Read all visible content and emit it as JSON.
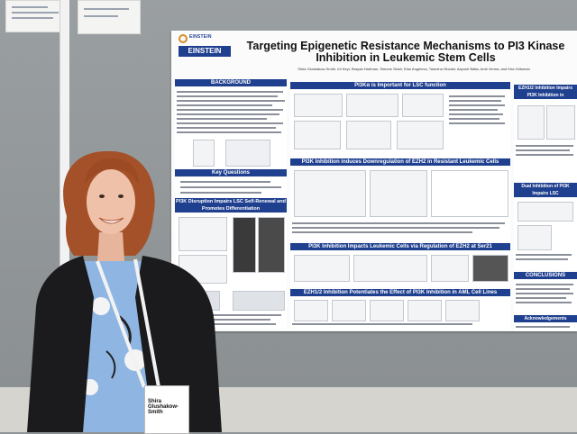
{
  "poster": {
    "logo": {
      "line1": "EINSTEIN",
      "line2": "EINSTEIN"
    },
    "title_line1": "Targeting Epigenetic Resistance Mechanisms to PI3 Kinase",
    "title_line2": "Inhibition in Leukemic Stem Cells",
    "authors": "Shira Glushakow-Smith, Irit Keyt, Brayda Hartman, Simone Sidoli, Elan Angelova, Tanesha Sinclair, Aayush Batta, Amit Verma, and Kira Gritsman",
    "sections": {
      "background": "BACKGROUND",
      "key_questions": "Key Questions",
      "pi3k_disruption": "PI3K Disruption Impairs LSC Self-Renewal and Promotes Differentiation",
      "pi3k_important": "PI3Kα is Important for LSC function",
      "ezh2_downreg": "PI3K Inhibition induces Downregulation of EZH2 in Resistant Leukemic Cells",
      "ezh2_ser21": "PI3K Inhibition Impacts Leukemic Cells via Regulation of EZH2 at Ser21",
      "ezh2_potentiates": "EZH1/2 Inhibition Potentiates the Effect of PI3K Inhibition in AML Cell Lines",
      "ezh2_impairs": "EZH1/2 Inhibition Impairs PI3K Inhibition in",
      "dual_inhibition": "Dual Inhibition of PI3K Impairs LSC",
      "conclusions": "CONCLUSIONS",
      "acknowledgements": "Acknowledgements"
    }
  },
  "badge": {
    "name": "Shira Glushakow-Smith"
  },
  "colors": {
    "header_blue": "#1f3f8f",
    "jacket": "#1b1b1d",
    "blouse": "#8fb6e3",
    "hair": "#a4512a"
  }
}
